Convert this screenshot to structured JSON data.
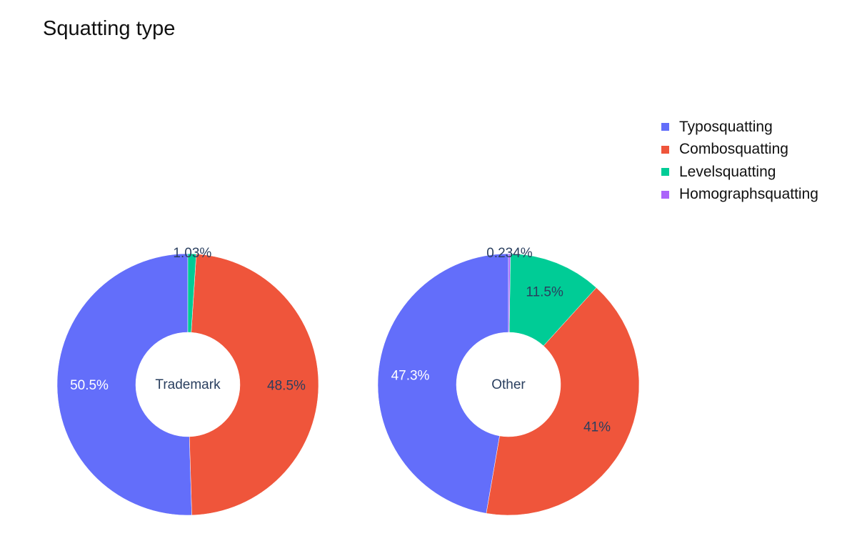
{
  "chart_data": {
    "type": "pie",
    "title": "Squatting type",
    "hole": true,
    "legend_position": "top-right",
    "categories": [
      "Typosquatting",
      "Combosquatting",
      "Levelsquatting",
      "Homographsquatting"
    ],
    "colors": [
      "#636efa",
      "#ef553b",
      "#00cc96",
      "#ab63fa"
    ],
    "pies": [
      {
        "name": "Trademark",
        "values": [
          50.5,
          48.5,
          1.03,
          0
        ],
        "labels": [
          "50.5%",
          "48.5%",
          "1.03%",
          ""
        ]
      },
      {
        "name": "Other",
        "values": [
          47.3,
          41,
          11.5,
          0.234
        ],
        "labels": [
          "47.3%",
          "41%",
          "11.5%",
          "0.234%"
        ]
      }
    ]
  }
}
